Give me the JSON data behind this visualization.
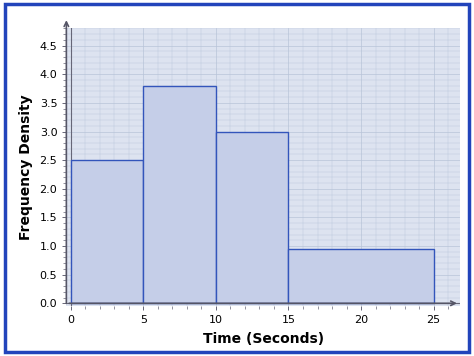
{
  "bars": [
    {
      "x_left": 0,
      "x_right": 5,
      "height": 2.5
    },
    {
      "x_left": 5,
      "x_right": 10,
      "height": 3.8
    },
    {
      "x_left": 10,
      "x_right": 15,
      "height": 3.0
    },
    {
      "x_left": 15,
      "x_right": 25,
      "height": 0.95
    }
  ],
  "bar_fill_color": "#c5cee8",
  "bar_edge_color": "#3355bb",
  "bar_linewidth": 1.0,
  "xlim": [
    -0.3,
    26.8
  ],
  "ylim": [
    -0.05,
    4.8
  ],
  "xticks": [
    0,
    5,
    10,
    15,
    20,
    25
  ],
  "yticks": [
    0,
    0.5,
    1,
    1.5,
    2,
    2.5,
    3,
    3.5,
    4,
    4.5
  ],
  "xlabel": "Time (Seconds)",
  "ylabel": "Frequency Density",
  "xlabel_fontsize": 10,
  "ylabel_fontsize": 10,
  "tick_fontsize": 8,
  "grid_color": "#b8c4d8",
  "grid_linewidth": 0.5,
  "fig_bg_color": "#ffffff",
  "plot_bg_color": "#dde3f0",
  "outer_border_color": "#2244bb",
  "outer_border_linewidth": 2.5,
  "arrow_color": "#555566",
  "spine_color": "#666677",
  "minor_tick_color": "#888899"
}
